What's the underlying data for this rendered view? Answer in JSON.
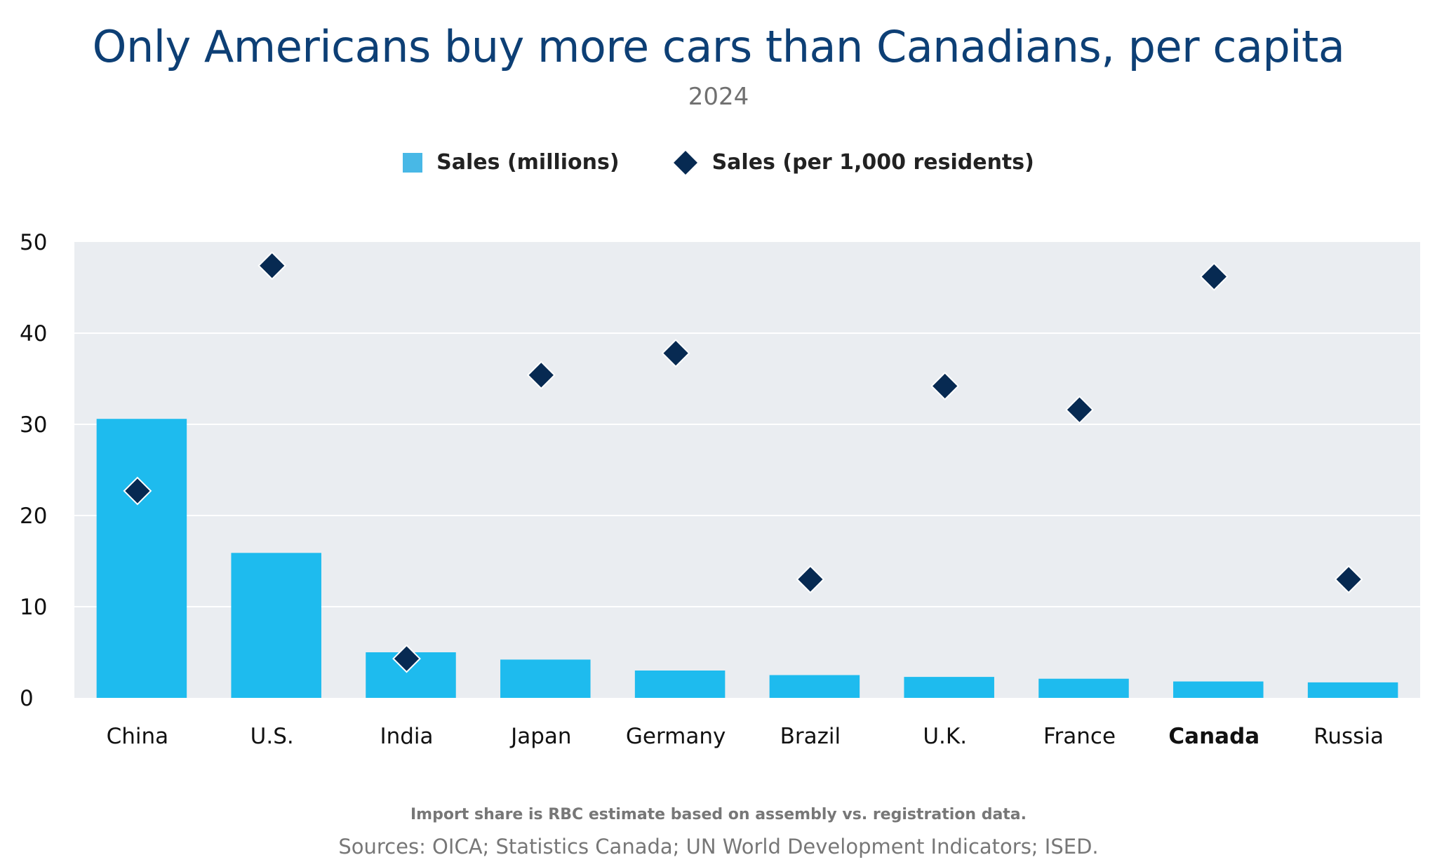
{
  "title": "Only Americans buy more cars than Canadians, per capita",
  "subtitle": "2024",
  "legend": {
    "bars_label": "Sales (millions)",
    "markers_label": "Sales (per 1,000 residents)"
  },
  "footnote": "Import share is RBC estimate based on assembly vs. registration data.",
  "sources": "Sources: OICA; Statistics Canada; UN World Development Indicators; ISED.",
  "colors": {
    "bar": "#1ebbee",
    "legend_bar": "#48b8e6",
    "marker": "#072a52",
    "plot_bg": "#eaedf1",
    "gridline": "#ffffff"
  },
  "chart_data": {
    "type": "bar",
    "categories": [
      "China",
      "U.S.",
      "India",
      "Japan",
      "Germany",
      "Brazil",
      "U.K.",
      "France",
      "Canada",
      "Russia"
    ],
    "highlight_category": "Canada",
    "series": [
      {
        "name": "Sales (millions)",
        "type": "bar",
        "values": [
          30.6,
          15.9,
          5.0,
          4.2,
          3.0,
          2.5,
          2.3,
          2.1,
          1.8,
          1.7
        ]
      },
      {
        "name": "Sales (per 1,000 residents)",
        "type": "scatter",
        "marker": "diamond",
        "values": [
          22.7,
          47.4,
          4.3,
          35.4,
          37.8,
          13.0,
          34.2,
          31.6,
          46.2,
          13.0
        ]
      }
    ],
    "yticks": [
      0,
      10,
      20,
      30,
      40,
      50
    ],
    "ylim": [
      0,
      50
    ],
    "grid": true,
    "legend_position": "top"
  }
}
